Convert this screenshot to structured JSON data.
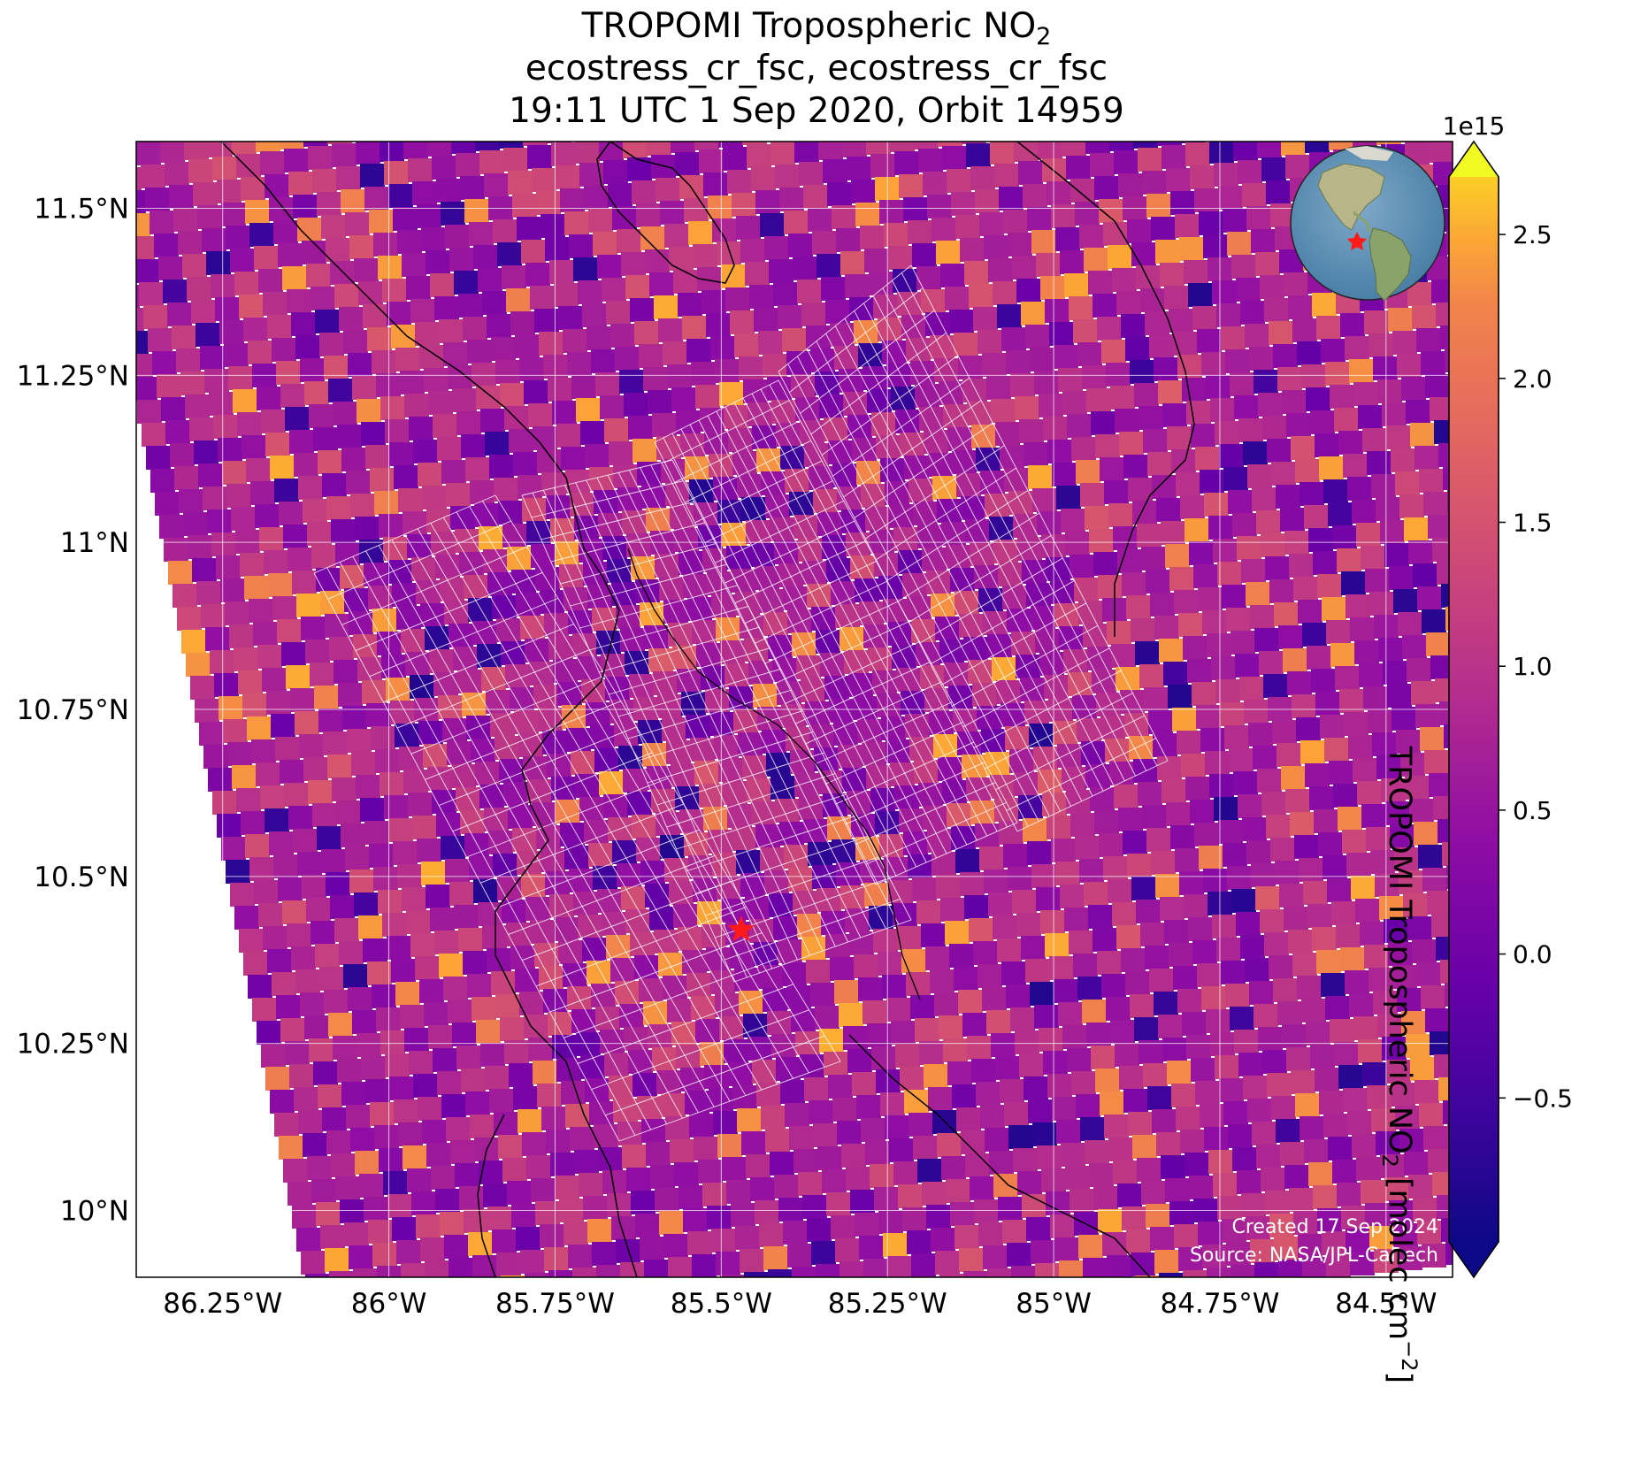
{
  "title": {
    "line1_main": "TROPOMI Tropospheric NO",
    "line1_sub": "2",
    "line2": "ecostress_cr_fsc, ecostress_cr_fsc",
    "line3": "19:11 UTC 1 Sep 2020, Orbit 14959"
  },
  "map": {
    "x_ticks": [
      "86.25°W",
      "86°W",
      "85.75°W",
      "85.5°W",
      "85.25°W",
      "85°W",
      "84.75°W",
      "84.5°W"
    ],
    "y_ticks": [
      "11.5°N",
      "11.25°N",
      "11°N",
      "10.75°N",
      "10.5°N",
      "10.25°N",
      "10°N"
    ],
    "lon_range": [
      -86.38,
      -84.4
    ],
    "lat_range": [
      9.9,
      11.6
    ],
    "grid": true,
    "coastline_color": "#000000",
    "overlay_outline_color": "#ffffff",
    "target_marker": {
      "lon": -85.47,
      "lat": 10.42,
      "color": "#ff1a1a",
      "icon": "star"
    },
    "credit_line1": "Created 17 Sep 2024",
    "credit_line2": "Source: NASA/JPL-Caltech",
    "inset_globe": {
      "icon": "globe-icon",
      "marker_color": "#ff1a1a",
      "location": "top-right"
    }
  },
  "colorbar": {
    "label_main": "TROPOMI Tropospheric NO",
    "label_sub": "2",
    "label_units": " [molec cm",
    "label_sup": "−2",
    "label_end": "]",
    "multiplier": "1e15",
    "ticks": [
      "2.5",
      "2.0",
      "1.5",
      "1.0",
      "0.5",
      "0.0",
      "−0.5"
    ],
    "tick_values": [
      2.5,
      2.0,
      1.5,
      1.0,
      0.5,
      0.0,
      -0.5
    ],
    "range": [
      -1.0,
      2.7
    ],
    "colormap": "plasma",
    "extend": "both"
  }
}
